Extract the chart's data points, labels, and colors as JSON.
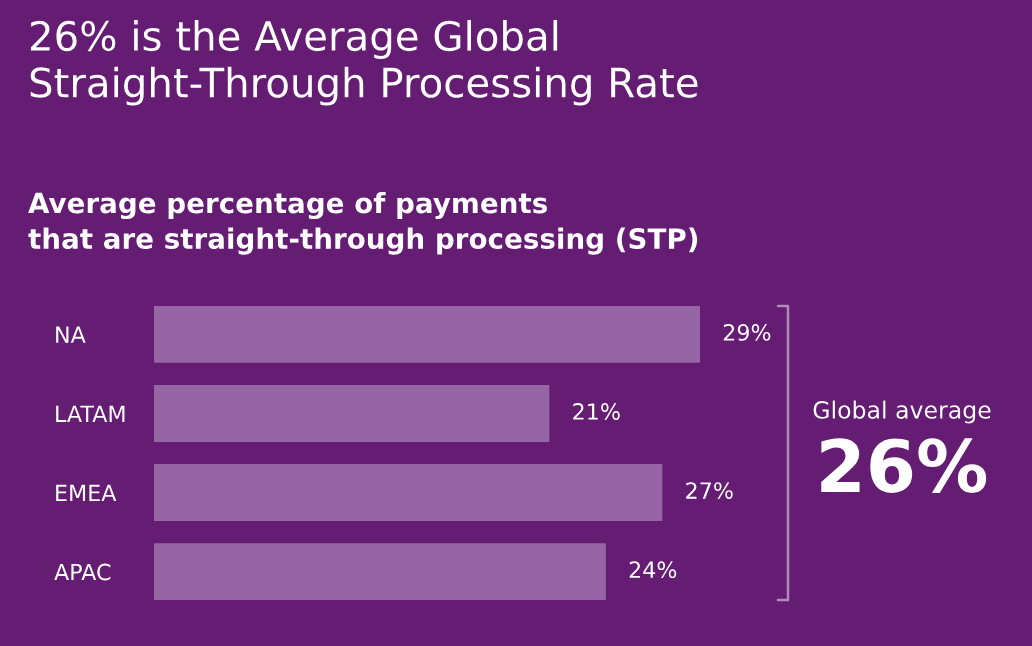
{
  "chart_data": {
    "type": "bar",
    "orientation": "horizontal",
    "title": "26% is the Average Global\nStraight-Through Processing Rate",
    "subtitle": "Average percentage of payments\nthat are straight-through processing (STP)",
    "categories": [
      "NA",
      "LATAM",
      "EMEA",
      "APAC"
    ],
    "values": [
      29,
      21,
      27,
      24
    ],
    "color": "#9566a3",
    "value_labels": [
      "29%",
      "21%",
      "27%",
      "24%"
    ],
    "annotations": [
      "Global average",
      "26%"
    ]
  }
}
